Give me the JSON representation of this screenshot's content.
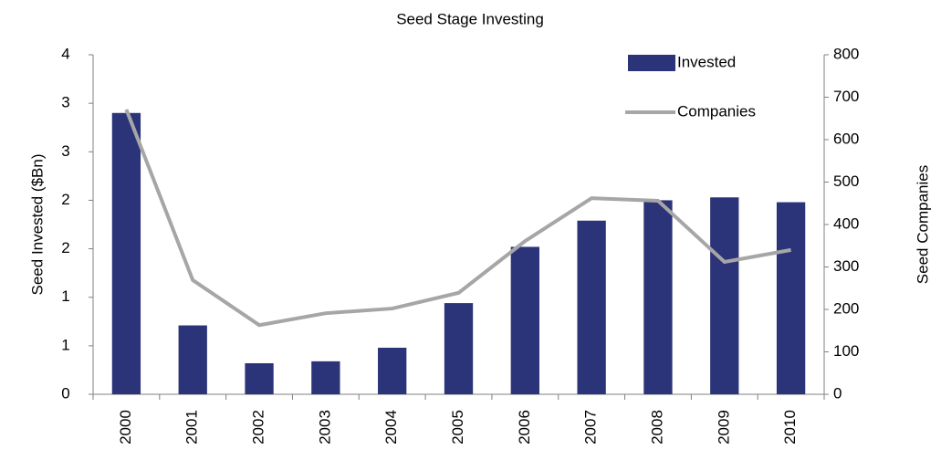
{
  "chart_data": {
    "type": "bar_line",
    "title": "Seed Stage Investing",
    "y_label": "Seed Invested ($Bn)",
    "y2_label": "Seed Companies",
    "categories": [
      "2000",
      "2001",
      "2002",
      "2003",
      "2004",
      "2005",
      "2006",
      "2007",
      "2008",
      "2009",
      "2010"
    ],
    "series": [
      {
        "name": "Invested",
        "type": "bar",
        "color": "#2b3478",
        "values": [
          2.9,
          0.71,
          0.32,
          0.34,
          0.48,
          0.94,
          1.52,
          1.79,
          2.0,
          2.03,
          1.98
        ]
      },
      {
        "name": "Companies",
        "type": "line",
        "axis": "y2",
        "color": "#a6a6a6",
        "values": [
          671,
          269,
          163,
          191,
          202,
          239,
          361,
          462,
          456,
          312,
          340
        ]
      }
    ],
    "ylim": [
      0,
      3.5
    ],
    "yticks": [
      0,
      {
        "value": 0.5,
        "label": "1"
      },
      1,
      {
        "value": 1.5,
        "label": "2"
      },
      2,
      {
        "value": 2.5,
        "label": "3"
      },
      3,
      {
        "value": 3.5,
        "label": "4"
      }
    ],
    "y2lim": [
      0,
      800
    ],
    "y2ticks": [
      0,
      100,
      200,
      300,
      400,
      500,
      600,
      700,
      800
    ],
    "legend": "top-right",
    "grid": false
  }
}
